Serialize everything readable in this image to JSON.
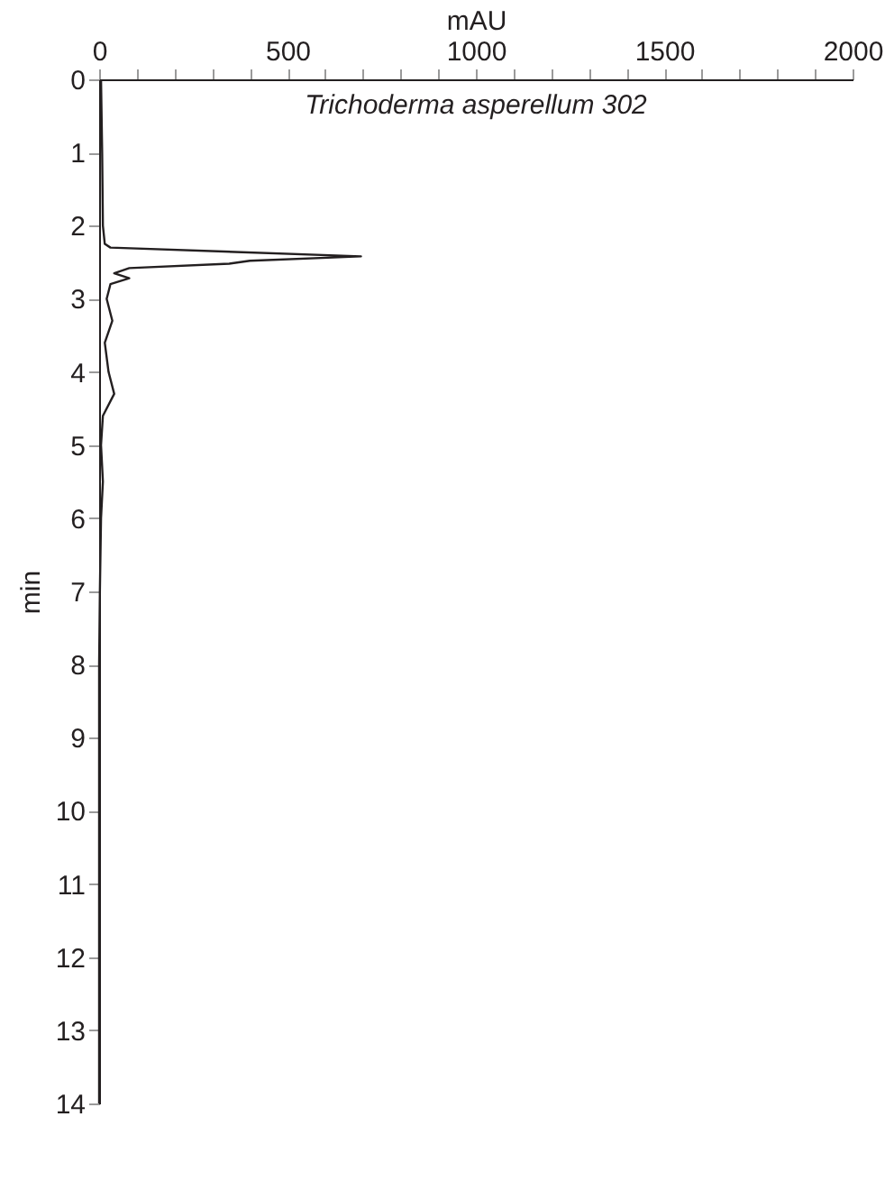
{
  "chart_data": {
    "type": "line",
    "xlabel": "mAU",
    "ylabel": "min",
    "annotations": [
      "Trichoderma asperellum 302"
    ],
    "xlim": [
      0,
      2000
    ],
    "ylim": [
      14,
      0
    ],
    "xticks": [
      0,
      {
        "value": 100,
        "label": null
      },
      {
        "value": 200,
        "label": null
      },
      {
        "value": 300,
        "label": null
      },
      {
        "value": 400,
        "label": null
      },
      500,
      {
        "value": 600,
        "label": null
      },
      {
        "value": 700,
        "label": null
      },
      {
        "value": 800,
        "label": null
      },
      {
        "value": 900,
        "label": null
      },
      1000,
      {
        "value": 1100,
        "label": null
      },
      {
        "value": 1200,
        "label": null
      },
      {
        "value": 1300,
        "label": null
      },
      {
        "value": 1400,
        "label": null
      },
      1500,
      {
        "value": 1600,
        "label": null
      },
      {
        "value": 1700,
        "label": null
      },
      {
        "value": 1800,
        "label": null
      },
      {
        "value": 1900,
        "label": null
      },
      2000
    ],
    "yticks": [
      0,
      1,
      2,
      3,
      4,
      5,
      6,
      7,
      8,
      9,
      10,
      11,
      12,
      13,
      14
    ],
    "grid": false,
    "marker": "none",
    "line_style": "solid",
    "series": [
      {
        "color": "#231f20",
        "x": [
          5,
          8,
          10,
          15,
          30,
          695,
          400,
          345,
          80,
          40,
          80,
          30,
          20,
          35,
          15,
          25,
          40,
          10,
          5,
          10,
          5,
          2,
          0,
          0
        ],
        "values": [
          0,
          1,
          2,
          2.25,
          2.3,
          2.42,
          2.48,
          2.52,
          2.58,
          2.65,
          2.72,
          2.8,
          3.0,
          3.3,
          3.6,
          4.0,
          4.3,
          4.6,
          5.0,
          5.5,
          6.0,
          7,
          8,
          14
        ]
      }
    ]
  }
}
